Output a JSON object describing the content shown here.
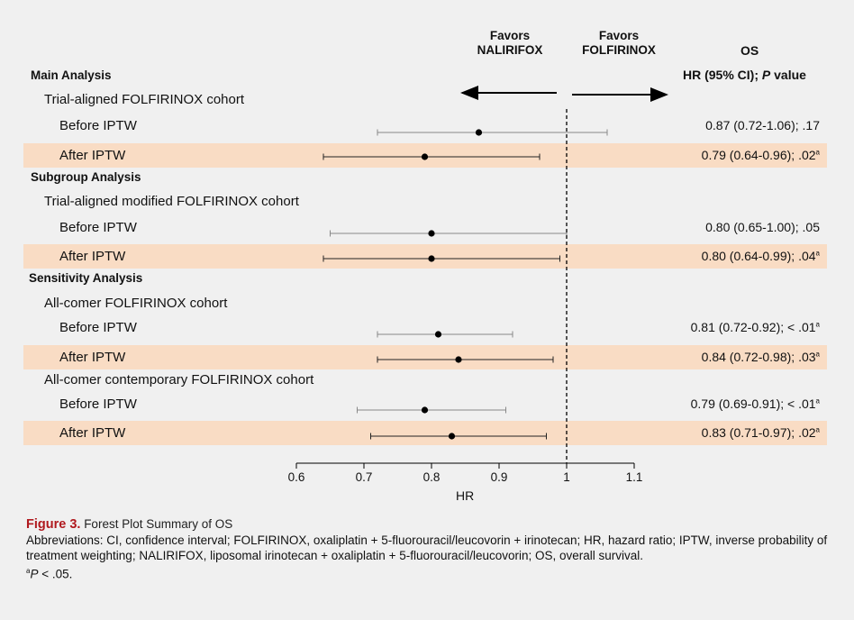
{
  "header": {
    "favors_left": [
      "Favors",
      "NALIRIFOX"
    ],
    "favors_right": [
      "Favors",
      "FOLFIRINOX"
    ],
    "os_title": "OS",
    "hr_title_prefix": "HR (95% CI); ",
    "hr_title_italic": "P",
    "hr_title_suffix": " value"
  },
  "sections": {
    "main": "Main Analysis",
    "subgroup": "Subgroup Analysis",
    "sensitivity": "Sensitivity Analysis"
  },
  "cohorts": {
    "c1": "Trial-aligned FOLFIRINOX cohort",
    "c2": "Trial-aligned modified FOLFIRINOX cohort",
    "c3": "All-comer FOLFIRINOX cohort",
    "c4": "All-comer contemporary FOLFIRINOX cohort"
  },
  "row_labels": {
    "before": "Before IPTW",
    "after": "After IPTW"
  },
  "hr_values": [
    {
      "text": "0.87 (0.72-1.06); .17",
      "sup": ""
    },
    {
      "text": "0.79 (0.64-0.96); .02",
      "sup": "a"
    },
    {
      "text": "0.80 (0.65-1.00); .05",
      "sup": ""
    },
    {
      "text": "0.80 (0.64-0.99); .04",
      "sup": "a"
    },
    {
      "text": "0.81 (0.72-0.92); < .01",
      "sup": "a"
    },
    {
      "text": "0.84 (0.72-0.98); .03",
      "sup": "a"
    },
    {
      "text": "0.79 (0.69-0.91); < .01",
      "sup": "a"
    },
    {
      "text": "0.83 (0.71-0.97); .02",
      "sup": "a"
    }
  ],
  "chart_data": {
    "type": "forest",
    "xlabel": "HR",
    "xlim": [
      0.6,
      1.1
    ],
    "ticks": [
      "0.6",
      "0.7",
      "0.8",
      "0.9",
      "1",
      "1.1"
    ],
    "reference_line": 1,
    "series": [
      {
        "cohort": "Trial-aligned FOLFIRINOX cohort",
        "label": "Before IPTW",
        "hr": 0.87,
        "lo": 0.72,
        "hi": 1.06,
        "highlight": false
      },
      {
        "cohort": "Trial-aligned FOLFIRINOX cohort",
        "label": "After IPTW",
        "hr": 0.79,
        "lo": 0.64,
        "hi": 0.96,
        "highlight": true
      },
      {
        "cohort": "Trial-aligned modified FOLFIRINOX cohort",
        "label": "Before IPTW",
        "hr": 0.8,
        "lo": 0.65,
        "hi": 1.0,
        "highlight": false
      },
      {
        "cohort": "Trial-aligned modified FOLFIRINOX cohort",
        "label": "After IPTW",
        "hr": 0.8,
        "lo": 0.64,
        "hi": 0.99,
        "highlight": true
      },
      {
        "cohort": "All-comer FOLFIRINOX cohort",
        "label": "Before IPTW",
        "hr": 0.81,
        "lo": 0.72,
        "hi": 0.92,
        "highlight": false
      },
      {
        "cohort": "All-comer FOLFIRINOX cohort",
        "label": "After IPTW",
        "hr": 0.84,
        "lo": 0.72,
        "hi": 0.98,
        "highlight": true
      },
      {
        "cohort": "All-comer contemporary FOLFIRINOX cohort",
        "label": "Before IPTW",
        "hr": 0.79,
        "lo": 0.69,
        "hi": 0.91,
        "highlight": false
      },
      {
        "cohort": "All-comer contemporary FOLFIRINOX cohort",
        "label": "After IPTW",
        "hr": 0.83,
        "lo": 0.71,
        "hi": 0.97,
        "highlight": true
      }
    ]
  },
  "caption": {
    "figure_label": "Figure 3.",
    "figure_title": " Forest Plot Summary of OS",
    "abbreviations": "Abbreviations: CI, confidence interval; FOLFIRINOX, oxaliplatin + 5-fluorouracil/leucovorin + irinotecan; HR, hazard ratio; IPTW, inverse probability of treatment weighting; NALIRIFOX, liposomal irinotecan + oxaliplatin + 5-fluorouracil/leucovorin; OS, overall survival.",
    "footnote_sup": "a",
    "footnote_italic": "P",
    "footnote_text": " < .05."
  },
  "colors": {
    "background": "#f0f0f0",
    "highlight": "#f9dcc4",
    "figure_title": "#b0191e",
    "point": "#000000",
    "ci_before": "#888888",
    "ci_after": "#222222"
  }
}
